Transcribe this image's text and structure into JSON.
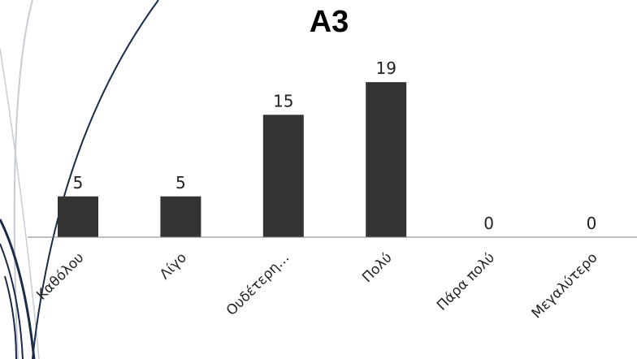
{
  "chart_data": {
    "type": "bar",
    "title": "A3",
    "categories": [
      "Καθόλου",
      "Λίγο",
      "Ουδέτερη…",
      "Πολύ",
      "Πάρα πολύ",
      "Μεγαλύτερο"
    ],
    "values": [
      5,
      5,
      15,
      19,
      0,
      0
    ],
    "ylim": [
      0,
      22
    ],
    "grid": false,
    "legend": "none",
    "bar_color": "#333333",
    "axis_color": "#808080",
    "decor_line_color": "#1a2b4a",
    "decor_light_color": "#c7ccd3"
  }
}
